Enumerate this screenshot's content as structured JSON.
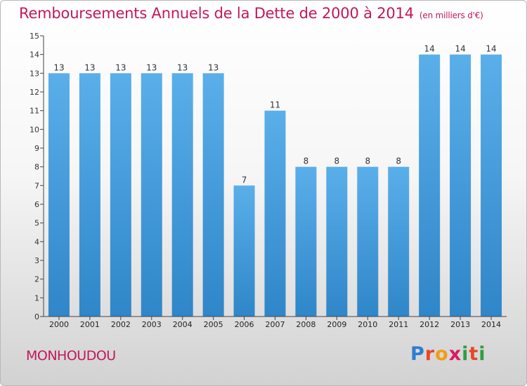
{
  "header": {
    "title": "Remboursements Annuels de la Dette de 2000 à 2014",
    "unit": "(en milliers d'€)"
  },
  "footer": {
    "town": "MONHOUDOU",
    "brand": "Proxiti"
  },
  "colors": {
    "title": "#c2185b",
    "bar_top": "#5aafea",
    "bar_bottom": "#2f86c8"
  },
  "chart_data": {
    "type": "bar",
    "title": "Remboursements Annuels de la Dette de 2000 à 2014",
    "categories": [
      "2000",
      "2001",
      "2002",
      "2003",
      "2004",
      "2005",
      "2006",
      "2007",
      "2008",
      "2009",
      "2010",
      "2011",
      "2012",
      "2013",
      "2014"
    ],
    "values": [
      13,
      13,
      13,
      13,
      13,
      13,
      7,
      11,
      8,
      8,
      8,
      8,
      14,
      14,
      14
    ],
    "ylim": [
      0,
      15
    ],
    "yticks": [
      0,
      1,
      2,
      3,
      4,
      5,
      6,
      7,
      8,
      9,
      10,
      11,
      12,
      13,
      14,
      15
    ],
    "grid": false
  }
}
